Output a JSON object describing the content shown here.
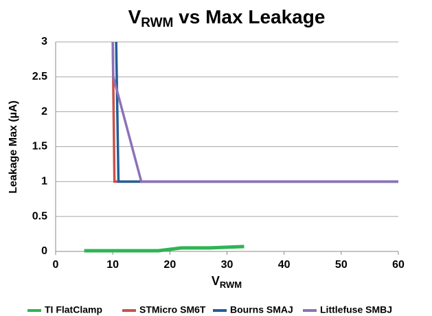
{
  "chart_data": {
    "type": "line",
    "title": [
      "V",
      "RWM",
      " vs Max Leakage"
    ],
    "x_label": [
      "V",
      "RWM"
    ],
    "y_label": "Leakage Max (µA)",
    "xlim": [
      0,
      60
    ],
    "xticks": [
      0,
      10,
      20,
      30,
      40,
      50,
      60
    ],
    "ylim": [
      0,
      3
    ],
    "yticks": [
      0,
      0.5,
      1,
      1.5,
      2,
      2.5,
      3
    ],
    "grid": true,
    "legend": "bottom",
    "series": [
      {
        "name": "TI FlatClamp",
        "color": "#2fb454",
        "x": [
          5,
          18,
          22,
          27,
          33
        ],
        "values": [
          0.01,
          0.01,
          0.05,
          0.05,
          0.07
        ]
      },
      {
        "name": "STMicro SM6T",
        "color": "#c9524a",
        "x": [
          10,
          10.3,
          60
        ],
        "values": [
          3,
          1,
          1
        ]
      },
      {
        "name": "Bourns SMAJ",
        "color": "#235e98",
        "x": [
          10.6,
          11,
          60
        ],
        "values": [
          3,
          1,
          1
        ]
      },
      {
        "name": "Littlefuse SMBJ",
        "color": "#8b72b8",
        "x": [
          10,
          10.1,
          15,
          60
        ],
        "values": [
          3,
          2.5,
          1,
          1
        ]
      }
    ]
  }
}
